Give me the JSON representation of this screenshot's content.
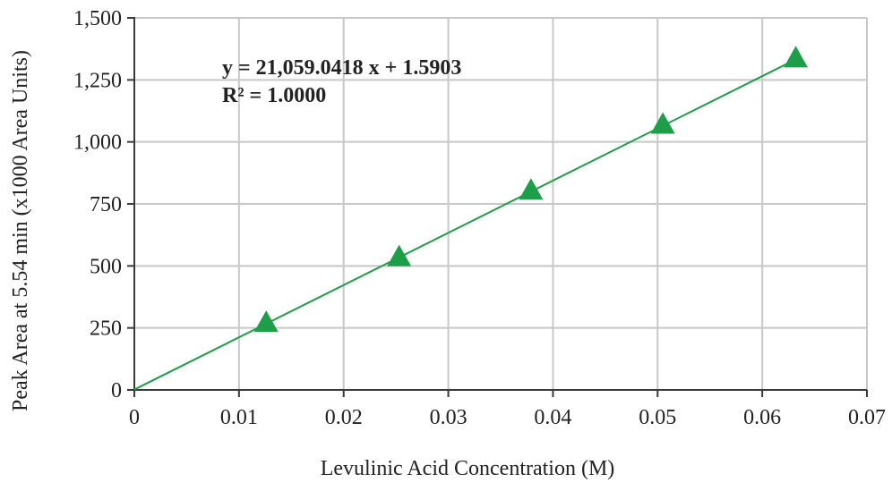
{
  "chart_data": {
    "type": "scatter",
    "xlabel": "Levulinic Acid Concentration (M)",
    "ylabel": "Peak Area at 5.54 min (x1000 Area Units)",
    "xlim": [
      0,
      0.07
    ],
    "ylim": [
      0,
      1500
    ],
    "x_ticks": [
      0,
      0.01,
      0.02,
      0.03,
      0.04,
      0.05,
      0.06,
      0.07
    ],
    "x_tick_labels": [
      "0",
      "0.01",
      "0.02",
      "0.03",
      "0.04",
      "0.05",
      "0.06",
      "0.07"
    ],
    "y_ticks": [
      0,
      250,
      500,
      750,
      1000,
      1250,
      1500
    ],
    "y_tick_labels": [
      "0",
      "250",
      "500",
      "750",
      "1,000",
      "1,250",
      "1,500"
    ],
    "grid": true,
    "series": [
      {
        "x": [
          0.0126,
          0.0253,
          0.0379,
          0.0505,
          0.0632
        ],
        "y": [
          267,
          532,
          800,
          1066,
          1333
        ],
        "marker": "triangle",
        "color": "#1f9e4a"
      }
    ],
    "trendline": {
      "slope": 21059.0418,
      "intercept": 1.5903,
      "x_range": [
        0,
        0.0632
      ],
      "color": "#1f9e4a"
    },
    "annotations": {
      "equation": "y = 21,059.0418 x + 1.5903",
      "r_squared": "R² = 1.0000"
    }
  }
}
